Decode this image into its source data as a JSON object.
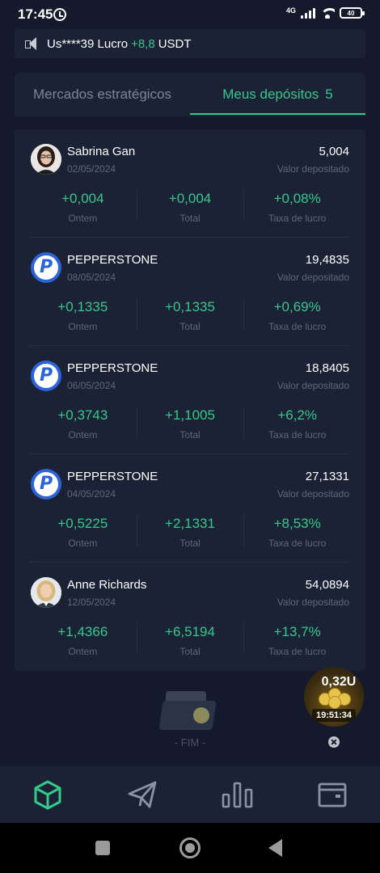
{
  "status_bar": {
    "time": "17:45",
    "network": "4G",
    "battery": "40"
  },
  "announcement": {
    "user": "Us****39 Lucro",
    "value": "+8,8",
    "unit": "USDT"
  },
  "tabs": [
    {
      "label": "Mercados estratégicos",
      "count": ""
    },
    {
      "label": "Meus depósitos",
      "count": "5"
    }
  ],
  "labels": {
    "amount": "Valor depositado",
    "yesterday": "Ontem",
    "total": "Total",
    "rate": "Taxa de lucro"
  },
  "deposits": [
    {
      "name": "Sabrina Gan",
      "date": "02/05/2024",
      "amount": "5,004",
      "yesterday": "+0,004",
      "total": "+0,004",
      "rate": "+0,08%",
      "avatar": "person-female-dark-hair"
    },
    {
      "name": "PEPPERSTONE",
      "date": "08/05/2024",
      "amount": "19,4835",
      "yesterday": "+0,1335",
      "total": "+0,1335",
      "rate": "+0,69%",
      "avatar": "pepperstone-logo"
    },
    {
      "name": "PEPPERSTONE",
      "date": "06/05/2024",
      "amount": "18,8405",
      "yesterday": "+0,3743",
      "total": "+1,1005",
      "rate": "+6,2%",
      "avatar": "pepperstone-logo"
    },
    {
      "name": "PEPPERSTONE",
      "date": "04/05/2024",
      "amount": "27,1331",
      "yesterday": "+0,5225",
      "total": "+2,1331",
      "rate": "+8,53%",
      "avatar": "pepperstone-logo"
    },
    {
      "name": "Anne Richards",
      "date": "12/05/2024",
      "amount": "54,0894",
      "yesterday": "+1,4366",
      "total": "+6,5194",
      "rate": "+13,7%",
      "avatar": "person-female-blonde"
    }
  ],
  "end_text": "- FIM -",
  "floating_widget": {
    "amount": "0,32U",
    "timer": "19:51:34"
  },
  "bottom_nav": [
    {
      "icon": "cube-icon",
      "active": true
    },
    {
      "icon": "paper-plane-icon",
      "active": false
    },
    {
      "icon": "bar-chart-icon",
      "active": false
    },
    {
      "icon": "wallet-icon",
      "active": false
    }
  ],
  "colors": {
    "accent": "#35c98a",
    "background": "#141a2b",
    "card": "#1b2235",
    "muted": "#5f6778"
  }
}
